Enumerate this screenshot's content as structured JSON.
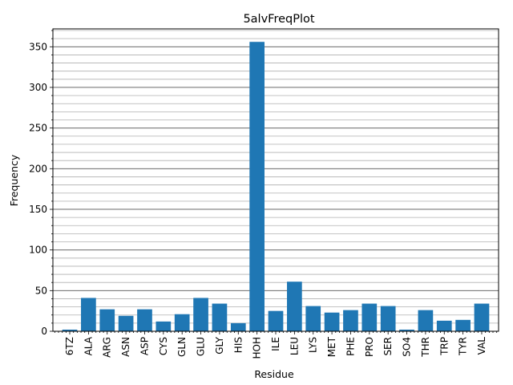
{
  "chart_data": {
    "type": "bar",
    "title": "5alvFreqPlot",
    "xlabel": "Residue",
    "ylabel": "Frequency",
    "categories": [
      "6TZ",
      "ALA",
      "ARG",
      "ASN",
      "ASP",
      "CYS",
      "GLN",
      "GLU",
      "GLY",
      "HIS",
      "HOH",
      "ILE",
      "LEU",
      "LYS",
      "MET",
      "PHE",
      "PRO",
      "SER",
      "SO4",
      "THR",
      "TRP",
      "TYR",
      "VAL"
    ],
    "values": [
      2,
      41,
      27,
      19,
      27,
      12,
      21,
      41,
      34,
      10,
      356,
      25,
      61,
      31,
      23,
      26,
      34,
      31,
      2,
      26,
      13,
      14,
      34
    ],
    "ylim": [
      0,
      372
    ],
    "yticks": [
      "0",
      "50",
      "100",
      "150",
      "200",
      "250",
      "300",
      "350"
    ],
    "bar_color": "#1f77b4",
    "grid": "major and minor horizontal lines"
  }
}
